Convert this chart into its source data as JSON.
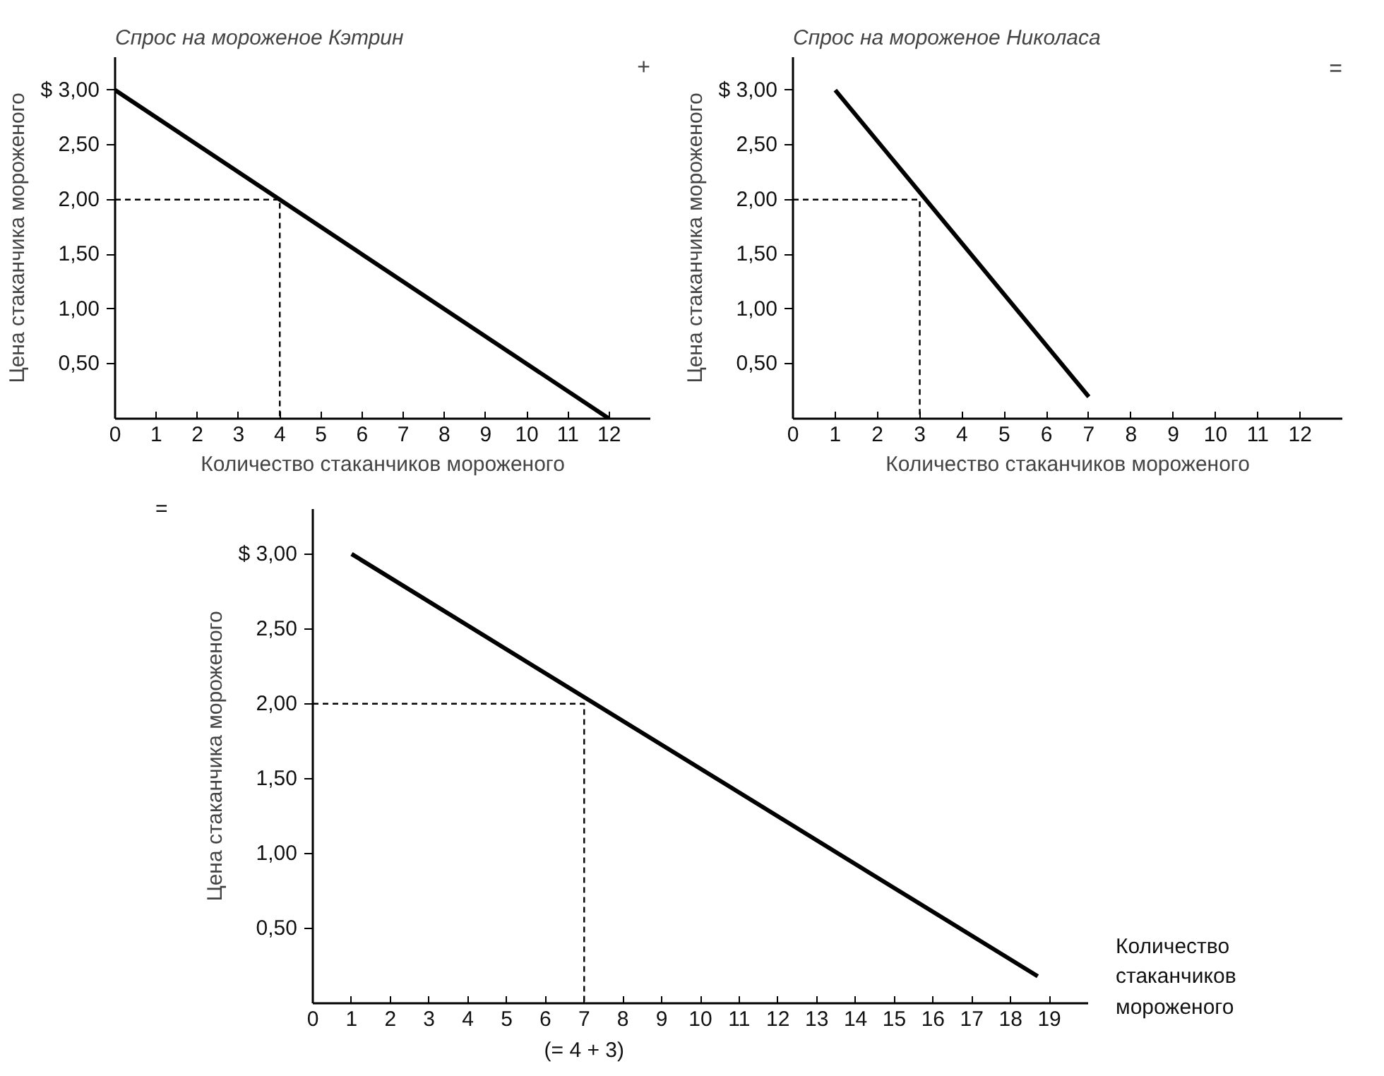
{
  "chart_data": [
    {
      "type": "line",
      "title": "Спрос на мороженое Кэтрин",
      "xlabel": "Количество стаканчиков мороженого",
      "ylabel": "Цена стаканчика мороженого",
      "annotations": [
        "+"
      ],
      "grid": false,
      "series": [
        {
          "color": "#000000",
          "line_style": "solid",
          "x": [
            0,
            12
          ],
          "values": [
            3.0,
            0
          ]
        },
        {
          "color": "#000000",
          "line_style": "dashed",
          "x": [
            0,
            4,
            4
          ],
          "values": [
            2.0,
            2.0,
            0
          ]
        }
      ],
      "xlim": [
        0,
        13
      ],
      "ylim": [
        0,
        3.3
      ],
      "xticks": [
        0,
        1,
        2,
        3,
        4,
        5,
        6,
        7,
        8,
        9,
        10,
        11,
        12
      ],
      "yticks": [
        {
          "value": 0.5,
          "label": "0,50"
        },
        {
          "value": 1.0,
          "label": "1,00"
        },
        {
          "value": 1.5,
          "label": "1,50"
        },
        {
          "value": 2.0,
          "label": "2,00"
        },
        {
          "value": 2.5,
          "label": "2,50"
        },
        {
          "value": 3.0,
          "label": "$ 3,00"
        }
      ]
    },
    {
      "type": "line",
      "title": "Спрос на мороженое Николаса",
      "xlabel": "Количество стаканчиков мороженого",
      "ylabel": "Цена стаканчика мороженого",
      "annotations": [
        "="
      ],
      "grid": false,
      "series": [
        {
          "color": "#000000",
          "line_style": "solid",
          "x": [
            1,
            7
          ],
          "values": [
            3.0,
            0.2
          ]
        },
        {
          "color": "#000000",
          "line_style": "dashed",
          "x": [
            0,
            3,
            3
          ],
          "values": [
            2.0,
            2.0,
            0
          ]
        }
      ],
      "xlim": [
        0,
        13
      ],
      "ylim": [
        0,
        3.3
      ],
      "xticks": [
        0,
        1,
        2,
        3,
        4,
        5,
        6,
        7,
        8,
        9,
        10,
        11,
        12
      ],
      "yticks": [
        {
          "value": 0.5,
          "label": "0,50"
        },
        {
          "value": 1.0,
          "label": "1,00"
        },
        {
          "value": 1.5,
          "label": "1,50"
        },
        {
          "value": 2.0,
          "label": "2,00"
        },
        {
          "value": 2.5,
          "label": "2,50"
        },
        {
          "value": 3.0,
          "label": "$ 3,00"
        }
      ]
    },
    {
      "type": "line",
      "xlabel": "Количество стаканчиков мороженого",
      "ylabel": "Цена стаканчика мороженого",
      "annotations": [
        "=",
        "(= 4 + 3)"
      ],
      "grid": false,
      "series": [
        {
          "color": "#000000",
          "line_style": "solid",
          "x": [
            1,
            18.7
          ],
          "values": [
            3.0,
            0.18
          ]
        },
        {
          "color": "#000000",
          "line_style": "dashed",
          "x": [
            0,
            7,
            7
          ],
          "values": [
            2.0,
            2.0,
            0
          ]
        }
      ],
      "xlim": [
        0,
        20
      ],
      "ylim": [
        0,
        3.3
      ],
      "xticks": [
        0,
        1,
        2,
        3,
        4,
        5,
        6,
        7,
        8,
        9,
        10,
        11,
        12,
        13,
        14,
        15,
        16,
        17,
        18,
        19
      ],
      "yticks": [
        {
          "value": 0.5,
          "label": "0,50"
        },
        {
          "value": 1.0,
          "label": "1,00"
        },
        {
          "value": 1.5,
          "label": "1,50"
        },
        {
          "value": 2.0,
          "label": "2,00"
        },
        {
          "value": 2.5,
          "label": "2,50"
        },
        {
          "value": 3.0,
          "label": "$ 3,00"
        }
      ]
    }
  ]
}
